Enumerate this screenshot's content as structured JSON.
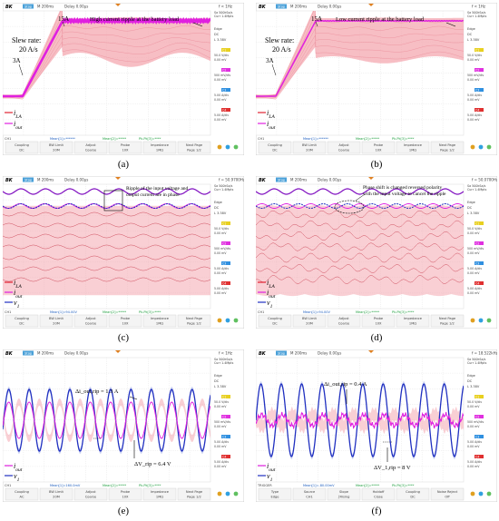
{
  "scope": {
    "brand": "BK",
    "status": "Stop",
    "timebase": "M 200ms",
    "delay": "Delay 0.00µs",
    "freq_default": "f < 1Hz",
    "sa_info": [
      "Sa 500kSa/s",
      "Curr 1.4Mpts"
    ],
    "side": {
      "edge": "Edge",
      "dc": "DC",
      "lvl": "L 3.38V",
      "ch": [
        "C1",
        "C2",
        "C3",
        "C4"
      ],
      "vdiv": [
        "50.0 V/div",
        "500 mV/div",
        "5.00 A/div",
        "5.00 A/div"
      ],
      "ofs": "0.00 mV"
    },
    "bottom": [
      "Coupling",
      "BW Limit",
      "Adjust",
      "Probe",
      "Impedance",
      "Next Page"
    ],
    "bottom_vals": [
      "DC",
      "20M",
      "Coarse",
      "10X",
      "1MΩ",
      "Page 1/2"
    ],
    "status_bar": [
      "CH4",
      "Mean[1]=******",
      "Mean[2]=*****",
      "Pk-Pk[3]=****"
    ]
  },
  "panels": [
    {
      "id": "a",
      "caption": "(a)",
      "annotation": "High current ripple at the battery load",
      "slew": "Slew rate:",
      "slew_val": "20 A/s",
      "lbl_3a": "3A",
      "lbl_15a": "15A",
      "legend": [
        "i_LA",
        "i_out"
      ],
      "ch1": "CH1",
      "freq": "f < 1Hz"
    },
    {
      "id": "b",
      "caption": "(b)",
      "annotation": "Low current ripple at the battery load",
      "slew": "Slew rate:",
      "slew_val": "20 A/s",
      "lbl_3a": "3A",
      "lbl_15a": "15A",
      "legend": [
        "i_LA",
        "i_out"
      ],
      "ch1": "CH1",
      "freq": "f < 1Hz"
    },
    {
      "id": "c",
      "caption": "(c)",
      "annotation": "Ripple of the input voltage and output current are in phase",
      "legend": [
        "i_LA",
        "i_out",
        "v_1"
      ],
      "ch1": "CH1",
      "freq": "f = 50.9700Hz",
      "mean1": "Mean[1]=94.00V"
    },
    {
      "id": "d",
      "caption": "(d)",
      "annotation": "Phase shift is changed reversed polarity with the input voltage to cancel the ripple",
      "legend": [
        "i_LA",
        "i_out",
        "v_1"
      ],
      "ch1": "CH1",
      "freq": "f = 50.0700Hz",
      "mean1": "Mean[1]=94.00V"
    },
    {
      "id": "e",
      "caption": "(e)",
      "ann_i": "Δi_out,rip = 1.3 A",
      "ann_v": "ΔV_rip = 6.4 V",
      "legend": [
        "i_out",
        "v_1"
      ],
      "ch1": "CH1",
      "freq": "f < 1Hz",
      "mean1": "Mean[1]=160.0mV",
      "coupling": "AC"
    },
    {
      "id": "f",
      "caption": "(f)",
      "ann_i": "Δi_out,rip = 0.4 A",
      "ann_v": "ΔV_1,rip = 8 V",
      "legend": [
        "i_out",
        "v_1"
      ],
      "ch1": "TRIGGER",
      "freq": "f = 18.522kHz",
      "mean1": "Mean[1]=-80.00mV",
      "bottom": [
        "Type",
        "Source",
        "Slope",
        "Holdoff",
        "Coupling",
        "Noise Reject"
      ],
      "bottom_vals": [
        "Edge",
        "CH1",
        "∫Rising",
        "Close",
        "DC",
        "Off"
      ]
    }
  ],
  "chart_data": [
    {
      "type": "line",
      "panel": "a",
      "title": "",
      "series": [
        {
          "name": "i_LA"
        },
        {
          "name": "i_out"
        }
      ],
      "annotations": [
        "3A",
        "15A",
        "Slew rate: 20 A/s",
        "High current ripple at the battery load"
      ]
    },
    {
      "type": "line",
      "panel": "b",
      "title": "",
      "series": [
        {
          "name": "i_LA"
        },
        {
          "name": "i_out"
        }
      ],
      "annotations": [
        "3A",
        "15A",
        "Slew rate: 20 A/s",
        "Low current ripple at the battery load"
      ]
    },
    {
      "type": "line",
      "panel": "c",
      "series": [
        {
          "name": "i_LA"
        },
        {
          "name": "i_out"
        },
        {
          "name": "v_1"
        }
      ],
      "relation": "in phase"
    },
    {
      "type": "line",
      "panel": "d",
      "series": [
        {
          "name": "i_LA"
        },
        {
          "name": "i_out"
        },
        {
          "name": "v_1"
        }
      ],
      "relation": "reversed polarity"
    },
    {
      "type": "line",
      "panel": "e",
      "series": [
        {
          "name": "i_out",
          "ripple_pp_A": 1.3
        },
        {
          "name": "v_1",
          "ripple_pp_V": 6.4
        }
      ],
      "cycles": 10
    },
    {
      "type": "line",
      "panel": "f",
      "series": [
        {
          "name": "i_out",
          "ripple_pp_A": 0.4
        },
        {
          "name": "v_1",
          "ripple_pp_V": 8
        }
      ],
      "cycles": 10
    }
  ],
  "colors": {
    "magenta": "#e020e0",
    "pink": "#f4a8b0",
    "red": "#e02030",
    "blue": "#2030c0",
    "purple": "#8010c0",
    "bg": "#ffffff"
  }
}
